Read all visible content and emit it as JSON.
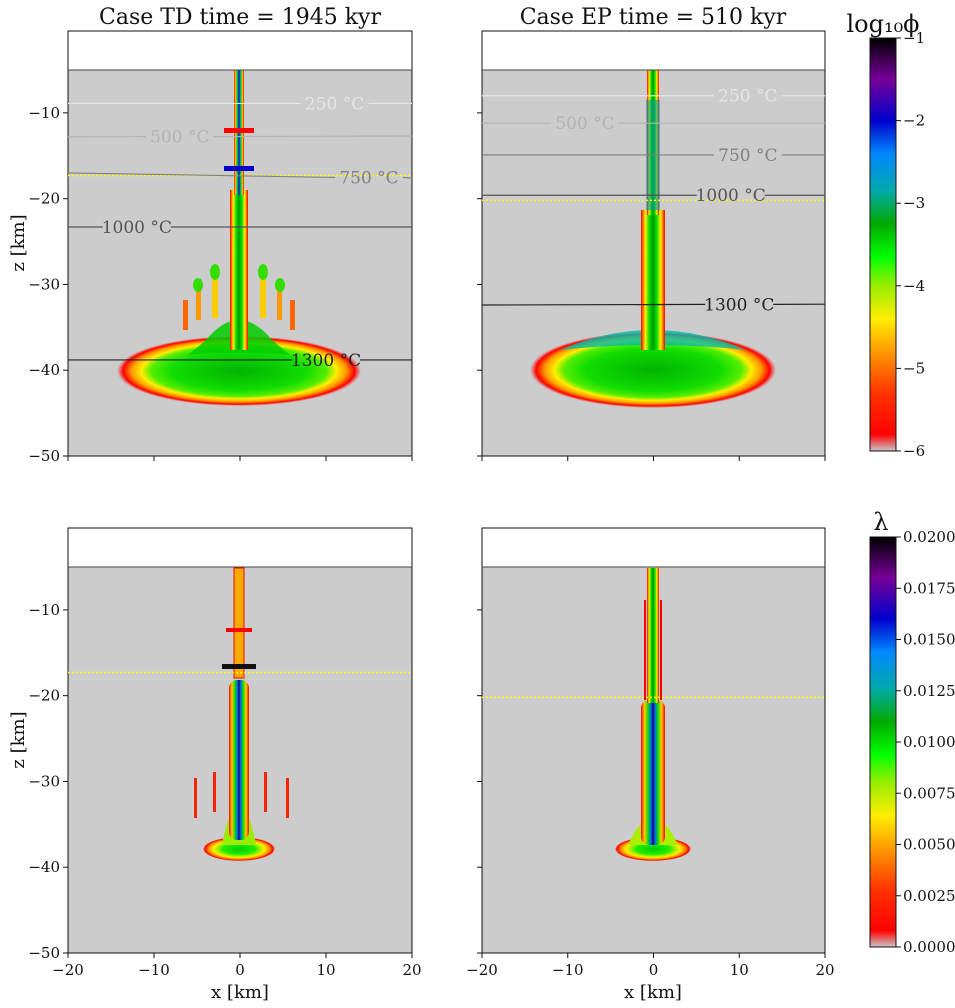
{
  "colors": {
    "background": "#cccccc",
    "air": "#ffffff",
    "yellow_dotted": "#ffff00",
    "colormap": [
      "#c8c8c8",
      "#ff0000",
      "#ff9900",
      "#ffee00",
      "#00ff00",
      "#00aa00",
      "#00aaaa",
      "#0077ff",
      "#0000cc",
      "#770099",
      "#000000"
    ]
  },
  "chart_data": [
    {
      "type": "heatmap",
      "panel": "top-left",
      "title": "Case TD time = 1945 kyr",
      "xlabel": "",
      "ylabel": "z [km]",
      "xlim": [
        -20,
        20
      ],
      "ylim": [
        -50,
        -5
      ],
      "x_ticks": [],
      "y_ticks": [
        "−10",
        "−20",
        "−30",
        "−40",
        "−50"
      ],
      "yellow_line_z": -17.3,
      "isotherms": [
        {
          "label": "250 °C",
          "z_left": -8.9,
          "z_right": -8.9,
          "color": "#e6e6e6",
          "label_x": 11
        },
        {
          "label": "500 °C",
          "z_left": -12.8,
          "z_right": -12.7,
          "color": "#b3b3b3",
          "label_x": -7
        },
        {
          "label": "750 °C",
          "z_left": -17.0,
          "z_right": -17.6,
          "color": "#808080",
          "label_x": 15
        },
        {
          "label": "1000 °C",
          "z_left": -23.3,
          "z_right": -23.3,
          "color": "#555555",
          "label_x": -12
        },
        {
          "label": "1300 °C",
          "z_left": -38.8,
          "z_right": -38.8,
          "color": "#222222",
          "label_x": 10
        }
      ]
    },
    {
      "type": "heatmap",
      "panel": "top-right",
      "title": "Case EP time = 510 kyr",
      "xlabel": "",
      "ylabel": "",
      "xlim": [
        -20,
        20
      ],
      "ylim": [
        -50,
        -5
      ],
      "x_ticks": [],
      "y_ticks": [],
      "yellow_line_z": -20.2,
      "isotherms": [
        {
          "label": "250 °C",
          "z_left": -8.0,
          "z_right": -8.0,
          "color": "#e6e6e6",
          "label_x": 11
        },
        {
          "label": "500 °C",
          "z_left": -11.2,
          "z_right": -11.2,
          "color": "#b3b3b3",
          "label_x": -8
        },
        {
          "label": "750 °C",
          "z_left": -14.9,
          "z_right": -14.9,
          "color": "#808080",
          "label_x": 11
        },
        {
          "label": "1000 °C",
          "z_left": -19.6,
          "z_right": -19.6,
          "color": "#555555",
          "label_x": 9
        },
        {
          "label": "1300 °C",
          "z_left": -32.4,
          "z_right": -32.3,
          "color": "#222222",
          "label_x": 10
        }
      ]
    },
    {
      "type": "heatmap",
      "panel": "bottom-left",
      "title": "",
      "xlabel": "x [km]",
      "ylabel": "z [km]",
      "xlim": [
        -20,
        20
      ],
      "ylim": [
        -50,
        -5
      ],
      "x_ticks": [
        "−20",
        "−10",
        "0",
        "10",
        "20"
      ],
      "y_ticks": [
        "−10",
        "−20",
        "−30",
        "−40",
        "−50"
      ],
      "yellow_line_z": -17.3,
      "isotherms": []
    },
    {
      "type": "heatmap",
      "panel": "bottom-right",
      "title": "",
      "xlabel": "x [km]",
      "ylabel": "",
      "xlim": [
        -20,
        20
      ],
      "ylim": [
        -50,
        -5
      ],
      "x_ticks": [
        "−20",
        "−10",
        "0",
        "10",
        "20"
      ],
      "y_ticks": [],
      "yellow_line_z": -20.2,
      "isotherms": []
    }
  ],
  "colorbars": {
    "phi": {
      "title": "log₁₀ϕ",
      "ticks": [
        "−1",
        "−2",
        "−3",
        "−4",
        "−5",
        "−6"
      ],
      "range": [
        -6,
        -1
      ]
    },
    "lambda": {
      "title": "λ",
      "ticks": [
        "0.0200",
        "0.0175",
        "0.0150",
        "0.0125",
        "0.0100",
        "0.0075",
        "0.0050",
        "0.0025",
        "0.0000"
      ],
      "range": [
        0,
        0.02
      ]
    }
  }
}
